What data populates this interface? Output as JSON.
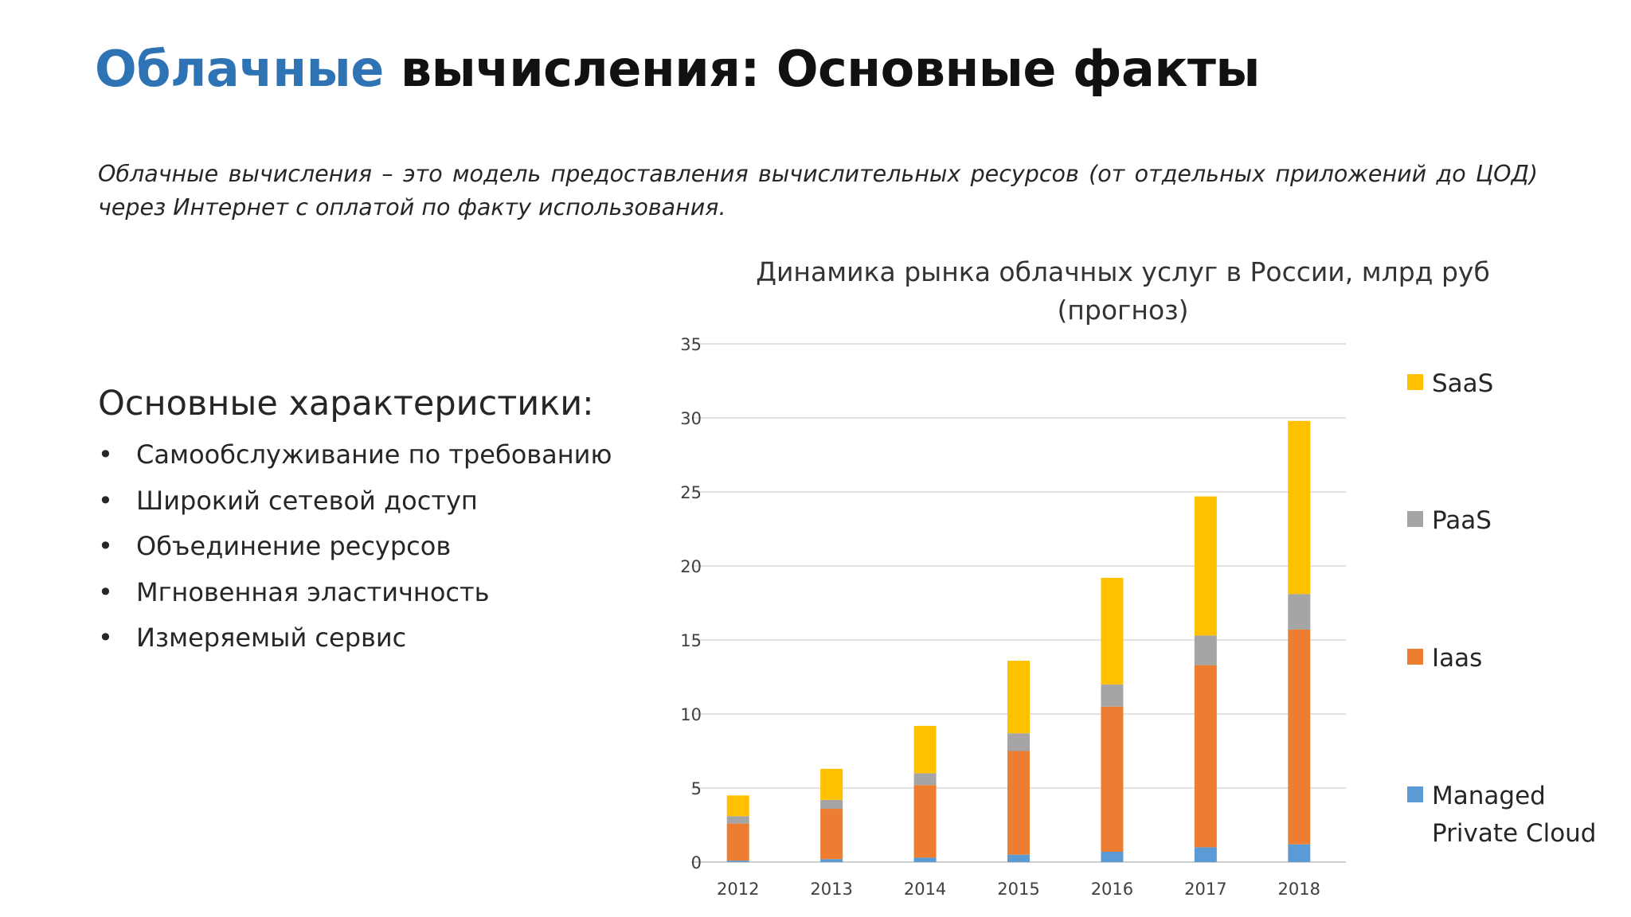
{
  "slide": {
    "title_accent": "Облачные",
    "title_rest": "вычисления: Основные факты",
    "definition": "Облачные вычисления – это модель предоставления вычислительных ресурсов (от отдельных приложений до ЦОД) через Интернет с оплатой по факту использования.",
    "features_heading": "Основные характеристики:",
    "features": [
      "Самообслуживание по требованию",
      "Широкий сетевой доступ",
      "Объединение ресурсов",
      "Мгновенная эластичность",
      "Измеряемый сервис"
    ],
    "bullet_char": "•",
    "accent_color": "#2e74b5"
  },
  "chart_data": {
    "type": "bar",
    "stacked": true,
    "title": "Динамика рынка облачных услуг в России, млрд руб (прогноз)",
    "title_lines": [
      "Динамика рынка облачных услуг в России, млрд руб",
      "(прогноз)"
    ],
    "categories": [
      "2012",
      "2013",
      "2014",
      "2015",
      "2016",
      "2017",
      "2018"
    ],
    "series": [
      {
        "name": "Managed Private Cloud",
        "legend_lines": [
          "Managed",
          "Private Cloud"
        ],
        "color": "#5b9bd5",
        "values": [
          0.1,
          0.2,
          0.3,
          0.5,
          0.7,
          1.0,
          1.2
        ]
      },
      {
        "name": "Iaas",
        "legend_lines": [
          "Iaas"
        ],
        "color": "#ed7d31",
        "values": [
          2.5,
          3.4,
          4.9,
          7.0,
          9.8,
          12.3,
          14.5
        ]
      },
      {
        "name": "PaaS",
        "legend_lines": [
          "PaaS"
        ],
        "color": "#a5a5a5",
        "values": [
          0.5,
          0.6,
          0.8,
          1.2,
          1.5,
          2.0,
          2.4
        ]
      },
      {
        "name": "SaaS",
        "legend_lines": [
          "SaaS"
        ],
        "color": "#ffc000",
        "values": [
          1.4,
          2.1,
          3.2,
          4.9,
          7.2,
          9.4,
          11.7
        ]
      }
    ],
    "legend_order": [
      "SaaS",
      "PaaS",
      "Iaas",
      "Managed Private Cloud"
    ],
    "legend_position": "right",
    "ylim": [
      0,
      35
    ],
    "yticks": [
      "0",
      "5",
      "10",
      "15",
      "20",
      "25",
      "30",
      "35"
    ],
    "grid": true,
    "xlabel": "",
    "ylabel": ""
  }
}
